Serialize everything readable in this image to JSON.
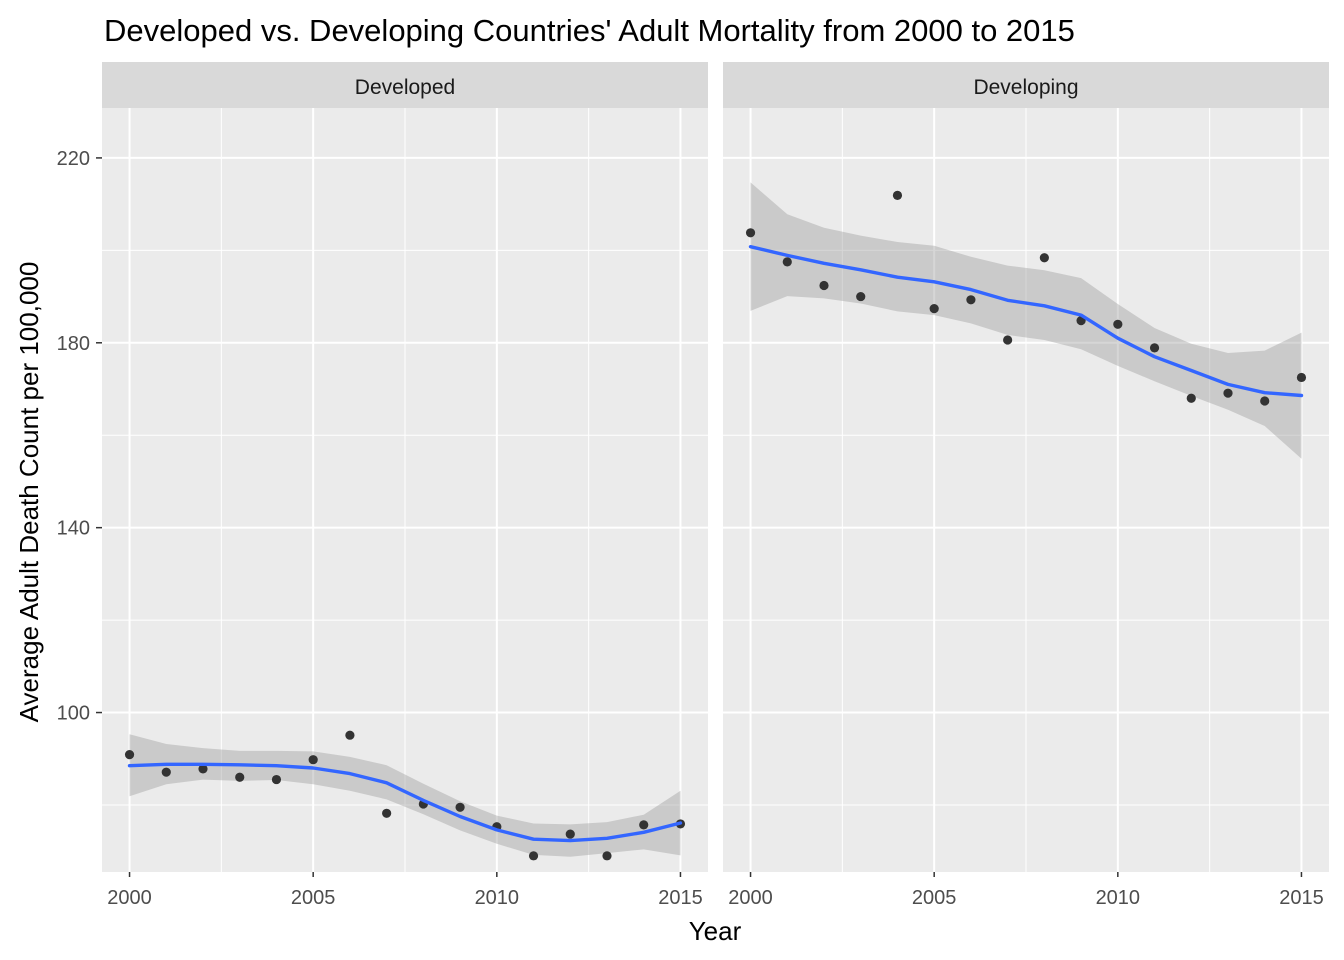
{
  "chart_data": {
    "type": "scatter",
    "title": "Developed vs. Developing Countries' Adult Mortality from 2000 to 2015",
    "xlabel": "Year",
    "ylabel": "Average Adult Death Count per 100,000",
    "xlim": [
      1999.25,
      2015.75
    ],
    "ylim": [
      65.5,
      230.8
    ],
    "x_ticks": [
      2000,
      2005,
      2010,
      2015
    ],
    "x_minor_ticks": [
      2002.5,
      2007.5,
      2012.5
    ],
    "y_ticks": [
      100,
      140,
      180,
      220
    ],
    "y_minor_ticks": [
      80,
      120,
      160,
      200
    ],
    "grid": true,
    "colors": {
      "panel_bg": "#EBEBEB",
      "strip_bg": "#D9D9D9",
      "grid": "#FFFFFF",
      "point": "#333333",
      "smooth_line": "#3366FF",
      "ribbon": "#999999"
    },
    "panels": [
      {
        "label": "Developed",
        "points": {
          "x": [
            2000,
            2001,
            2002,
            2003,
            2004,
            2005,
            2006,
            2007,
            2008,
            2009,
            2010,
            2011,
            2012,
            2013,
            2014,
            2015
          ],
          "y": [
            90.9,
            87.1,
            87.8,
            86.0,
            85.5,
            89.8,
            95.1,
            78.2,
            80.2,
            79.5,
            75.3,
            69.0,
            73.7,
            69.0,
            75.7,
            75.9
          ]
        },
        "smooth": {
          "x": [
            2000,
            2001,
            2002,
            2003,
            2004,
            2005,
            2006,
            2007,
            2008,
            2009,
            2010,
            2011,
            2012,
            2013,
            2014,
            2015
          ],
          "y": [
            88.5,
            88.8,
            88.8,
            88.7,
            88.5,
            88.0,
            86.8,
            84.8,
            81.0,
            77.5,
            74.6,
            72.6,
            72.3,
            72.8,
            74.1,
            76.1
          ],
          "lower": [
            81.9,
            84.5,
            85.5,
            85.2,
            85.4,
            84.5,
            83.1,
            81.2,
            78.0,
            74.5,
            71.6,
            69.2,
            68.8,
            69.6,
            70.4,
            69.1
          ],
          "upper": [
            95.3,
            93.2,
            92.3,
            91.7,
            91.7,
            91.6,
            90.4,
            88.6,
            84.6,
            80.8,
            77.7,
            76.0,
            75.8,
            76.3,
            77.9,
            83.1
          ]
        }
      },
      {
        "label": "Developing",
        "points": {
          "x": [
            2000,
            2001,
            2002,
            2003,
            2004,
            2005,
            2006,
            2007,
            2008,
            2009,
            2010,
            2011,
            2012,
            2013,
            2014,
            2015
          ],
          "y": [
            203.8,
            197.5,
            192.4,
            190.0,
            211.9,
            187.4,
            189.3,
            180.6,
            198.4,
            184.8,
            184.0,
            178.9,
            168.0,
            169.1,
            167.4,
            172.5
          ]
        },
        "smooth": {
          "x": [
            2000,
            2001,
            2002,
            2003,
            2004,
            2005,
            2006,
            2007,
            2008,
            2009,
            2010,
            2011,
            2012,
            2013,
            2014,
            2015
          ],
          "y": [
            200.8,
            198.9,
            197.2,
            195.8,
            194.2,
            193.2,
            191.5,
            189.2,
            188.0,
            186.0,
            181.0,
            177.0,
            174.0,
            171.0,
            169.2,
            168.6
          ],
          "lower": [
            186.9,
            190.1,
            189.6,
            188.5,
            186.8,
            186.0,
            184.2,
            181.7,
            180.6,
            178.6,
            175.0,
            171.7,
            168.5,
            165.5,
            162.0,
            154.9
          ],
          "upper": [
            214.7,
            207.8,
            204.9,
            203.2,
            201.8,
            201.0,
            198.6,
            196.7,
            195.7,
            194.0,
            188.4,
            183.2,
            179.8,
            177.8,
            178.3,
            182.2
          ]
        }
      }
    ]
  }
}
